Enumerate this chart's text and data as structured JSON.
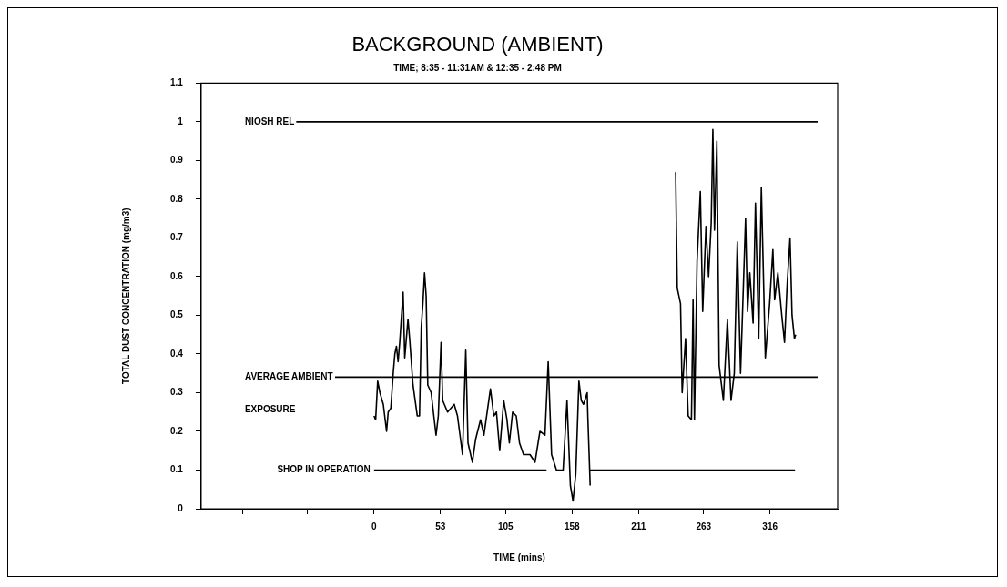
{
  "chart_data": {
    "type": "line",
    "title": "BACKGROUND (AMBIENT)",
    "subtitle": "TIME; 8:35 - 11:31AM & 12:35 - 2:48 PM",
    "xlabel": "TIME (mins)",
    "ylabel": "TOTAL DUST CONCENTRATION (mg/m3)",
    "xlim": [
      -138,
      370
    ],
    "xticks": [
      {
        "value": -105,
        "label": null
      },
      {
        "value": -53,
        "label": null
      },
      0,
      53,
      105,
      158,
      211,
      263,
      316
    ],
    "ylim": [
      0,
      1.1
    ],
    "yticks": [
      0,
      0.1,
      0.2,
      0.3,
      0.4,
      0.5,
      0.6,
      0.7,
      0.8,
      0.9,
      1,
      1.1
    ],
    "grid": false,
    "marker": "none",
    "line_style": "solid",
    "series": [
      {
        "color": "#000000",
        "x": [
          0,
          1.3,
          2.9,
          4.7,
          7.4,
          10.0,
          11.3,
          13.4,
          15.3,
          16.6,
          17.9,
          19.2,
          20.5,
          23.2,
          24.5,
          27.1,
          28.4,
          31.1,
          34.5,
          36.3,
          37.7,
          39.0,
          40.3,
          41.6,
          42.9,
          45.6,
          49.5,
          51.3,
          53.5,
          54.8,
          58.7,
          64.0,
          66.6,
          70.6,
          73.2,
          75.0,
          78.5,
          81.1,
          85.0,
          87.7,
          92.9,
          95.6,
          97.7,
          100.3,
          103.5,
          106.1,
          108.0,
          110.6,
          113.5,
          116.1,
          119.3,
          124.5,
          128.5,
          132.4,
          136.4,
          139.0,
          141.7,
          145.6,
          150.9,
          154.0,
          156.7,
          158.8,
          161.0,
          163.5,
          165.4,
          167.2,
          170.1,
          170.6,
          172.5,
          205,
          240.7,
          242.0,
          244.6,
          245.9,
          248.6,
          250.7,
          253.3,
          254.6,
          255.7,
          257.8,
          260.4,
          262.3,
          264.9,
          267.0,
          269.1,
          270.4,
          271.7,
          273.6,
          275.4,
          278.8,
          282.0,
          284.9,
          287.5,
          289.9,
          292.5,
          296.5,
          298.1,
          299.9,
          302.5,
          304.4,
          307.0,
          309.1,
          312.3,
          315.7,
          318.3,
          319.7,
          322.3,
          325.4,
          327.6,
          329.7,
          332.0,
          333.6,
          335.5,
          336.5
        ],
        "values": [
          0.24,
          0.23,
          0.33,
          0.3,
          0.27,
          0.2,
          0.25,
          0.26,
          0.35,
          0.4,
          0.42,
          0.38,
          0.43,
          0.56,
          0.39,
          0.49,
          0.44,
          0.32,
          0.24,
          0.24,
          0.47,
          0.53,
          0.61,
          0.55,
          0.32,
          0.3,
          0.19,
          0.24,
          0.43,
          0.28,
          0.25,
          0.27,
          0.24,
          0.14,
          0.41,
          0.17,
          0.12,
          0.18,
          0.23,
          0.19,
          0.31,
          0.24,
          0.25,
          0.15,
          0.28,
          0.23,
          0.17,
          0.25,
          0.24,
          0.17,
          0.14,
          0.14,
          0.12,
          0.2,
          0.19,
          0.38,
          0.14,
          0.1,
          0.1,
          0.28,
          0.06,
          0.02,
          0.09,
          0.33,
          0.28,
          0.27,
          0.3,
          0.24,
          0.06,
          null,
          0.87,
          0.57,
          0.53,
          0.3,
          0.44,
          0.24,
          0.23,
          0.54,
          0.23,
          0.64,
          0.82,
          0.51,
          0.73,
          0.6,
          0.74,
          0.98,
          0.72,
          0.95,
          0.37,
          0.28,
          0.49,
          0.28,
          0.35,
          0.69,
          0.35,
          0.75,
          0.51,
          0.61,
          0.48,
          0.79,
          0.44,
          0.83,
          0.39,
          0.53,
          0.67,
          0.54,
          0.61,
          0.5,
          0.43,
          0.58,
          0.7,
          0.5,
          0.44,
          0.45
        ]
      },
      {
        "name": "SHOP IN OPERATION",
        "color": "#000000",
        "x": [
          0,
          137.7,
          155,
          172,
          336
        ],
        "values": [
          0.1,
          0.1,
          null,
          0.1,
          0.1
        ]
      }
    ],
    "ref_lines": [
      {
        "axis": "y",
        "value": 1,
        "label": "NIOSH REL"
      },
      {
        "axis": "y",
        "value": 0.34,
        "label": "AVERAGE AMBIENT EXPOSURE"
      }
    ]
  }
}
